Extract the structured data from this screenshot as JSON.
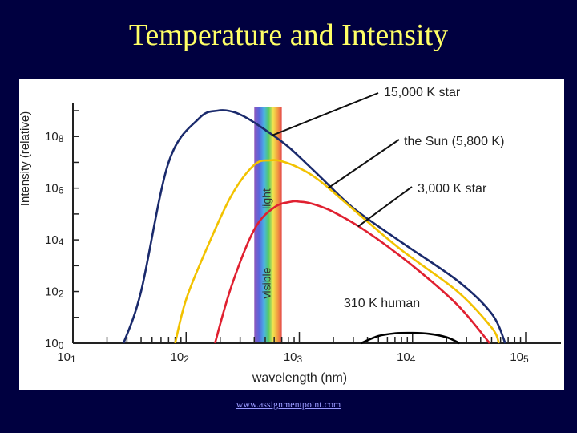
{
  "slide": {
    "title": "Temperature and Intensity",
    "footer": "www.assignmentpoint.com"
  },
  "colors": {
    "background": "#000040",
    "title": "#ffff66",
    "star_15000": "#1a2a6c",
    "sun": "#f2c200",
    "star_3000": "#e02030",
    "human": "#000000"
  },
  "chart_data": {
    "type": "line",
    "title": "",
    "xlabel": "wavelength (nm)",
    "ylabel": "Intensity (relative)",
    "x_scale": "log",
    "y_scale": "log",
    "xlim": [
      10,
      100000
    ],
    "ylim": [
      1,
      1000000000
    ],
    "x_ticks": [
      {
        "value": 10,
        "base": "10",
        "exp": "1"
      },
      {
        "value": 100,
        "base": "10",
        "exp": "2"
      },
      {
        "value": 1000,
        "base": "10",
        "exp": "3"
      },
      {
        "value": 10000,
        "base": "10",
        "exp": "4"
      },
      {
        "value": 100000,
        "base": "10",
        "exp": "5"
      }
    ],
    "y_ticks": [
      {
        "value": 1,
        "base": "10",
        "exp": "0"
      },
      {
        "value": 100,
        "base": "10",
        "exp": "2"
      },
      {
        "value": 10000,
        "base": "10",
        "exp": "4"
      },
      {
        "value": 1000000,
        "base": "10",
        "exp": "6"
      },
      {
        "value": 100000000,
        "base": "10",
        "exp": "8"
      }
    ],
    "visible_band": {
      "label": "visible light",
      "word1": "visible",
      "word2": "light",
      "from": 400,
      "to": 700
    },
    "series": [
      {
        "name": "15,000 K star",
        "color": "#1a2a6c",
        "x": [
          28,
          40,
          70,
          130,
          190,
          260,
          350,
          500,
          800,
          1500,
          3000,
          8000,
          25000,
          50000,
          66000
        ],
        "y": [
          1,
          100,
          10000000,
          500000000,
          1000000000,
          900000000,
          500000000,
          180000000,
          40000000,
          3000000,
          170000,
          8000,
          260,
          14,
          1
        ]
      },
      {
        "name": "the Sun (5,800 K)",
        "color": "#f2c200",
        "x": [
          80,
          100,
          150,
          250,
          400,
          550,
          700,
          1000,
          1500,
          3000,
          8000,
          25000,
          50000,
          58000
        ],
        "y": [
          1,
          50,
          4000,
          500000,
          8000000,
          12000000,
          11000000,
          6000000,
          2000000,
          150000,
          4000,
          100,
          4,
          1
        ]
      },
      {
        "name": "3,000 K star",
        "color": "#e02030",
        "x": [
          180,
          250,
          400,
          600,
          850,
          1000,
          1300,
          2000,
          4000,
          10000,
          25000,
          48000
        ],
        "y": [
          1,
          150,
          25000,
          180000,
          300000,
          300000,
          250000,
          120000,
          20000,
          1000,
          30,
          1
        ]
      },
      {
        "name": "310 K human",
        "color": "#000000",
        "x": [
          3500,
          5000,
          7000,
          10000,
          14000,
          20000,
          26000
        ],
        "y": [
          1,
          1.9,
          2.4,
          2.5,
          2.3,
          1.7,
          1
        ]
      }
    ],
    "labels": [
      {
        "text": "15,000 K star",
        "series": 0,
        "pointer_x": 580
      },
      {
        "text": "the Sun (5,800 K)",
        "series": 1,
        "pointer_x": 1800
      },
      {
        "text": "3,000 K star",
        "series": 2,
        "pointer_x": 3300
      },
      {
        "text": "310 K human",
        "series": 3,
        "pointer_x": 10000
      }
    ],
    "grid": false,
    "legend": "none"
  }
}
